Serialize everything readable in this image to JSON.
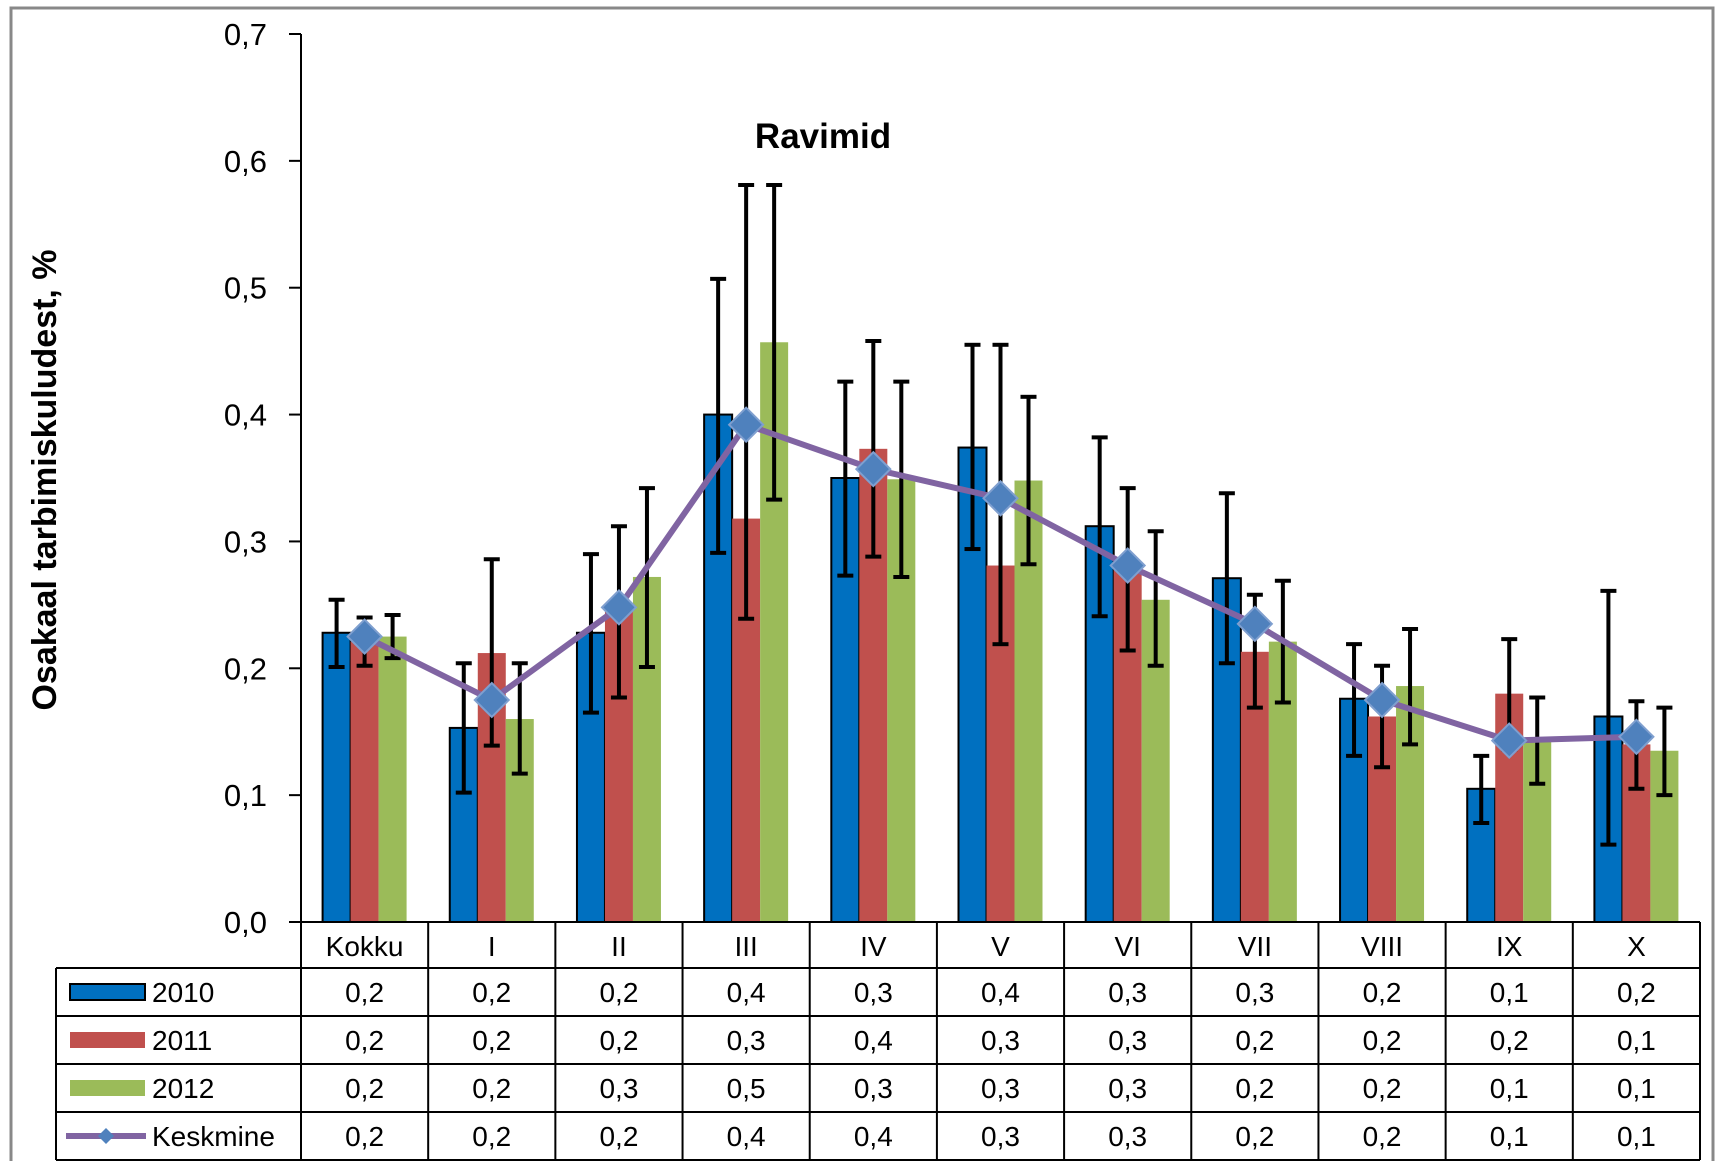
{
  "chart_data": {
    "type": "bar",
    "title": "Ravimid",
    "ylabel": "Osakaal tarbimiskuludest, %",
    "xlabel": "",
    "ylim": [
      0,
      0.7
    ],
    "yticks": [
      "0,0",
      "0,1",
      "0,2",
      "0,3",
      "0,4",
      "0,5",
      "0,6",
      "0,7"
    ],
    "ytick_values": [
      0,
      0.1,
      0.2,
      0.3,
      0.4,
      0.5,
      0.6,
      0.7
    ],
    "categories": [
      "Kokku",
      "I",
      "II",
      "III",
      "IV",
      "V",
      "VI",
      "VII",
      "VIII",
      "IX",
      "X"
    ],
    "series": [
      {
        "name": "2010",
        "color": "#0070C0",
        "values": [
          0.228,
          0.153,
          0.228,
          0.4,
          0.35,
          0.374,
          0.312,
          0.271,
          0.176,
          0.105,
          0.162
        ],
        "err_low": [
          0.201,
          0.102,
          0.165,
          0.291,
          0.273,
          0.294,
          0.241,
          0.204,
          0.131,
          0.078,
          0.061
        ],
        "err_high": [
          0.254,
          0.204,
          0.29,
          0.507,
          0.426,
          0.455,
          0.382,
          0.338,
          0.219,
          0.131,
          0.261
        ],
        "table": [
          "0,2",
          "0,2",
          "0,2",
          "0,4",
          "0,3",
          "0,4",
          "0,3",
          "0,3",
          "0,2",
          "0,1",
          "0,2"
        ]
      },
      {
        "name": "2011",
        "color": "#C0504D",
        "values": [
          0.221,
          0.212,
          0.245,
          0.318,
          0.373,
          0.281,
          0.278,
          0.213,
          0.162,
          0.18,
          0.14
        ],
        "err_low": [
          0.202,
          0.139,
          0.177,
          0.239,
          0.288,
          0.219,
          0.214,
          0.169,
          0.122,
          0.136,
          0.105
        ],
        "err_high": [
          0.24,
          0.286,
          0.312,
          0.581,
          0.458,
          0.455,
          0.342,
          0.258,
          0.202,
          0.223,
          0.174
        ],
        "table": [
          "0,2",
          "0,2",
          "0,2",
          "0,3",
          "0,4",
          "0,3",
          "0,3",
          "0,2",
          "0,2",
          "0,2",
          "0,1"
        ]
      },
      {
        "name": "2012",
        "color": "#9BBB59",
        "values": [
          0.225,
          0.16,
          0.272,
          0.457,
          0.349,
          0.348,
          0.254,
          0.221,
          0.186,
          0.143,
          0.135
        ],
        "err_low": [
          0.208,
          0.117,
          0.201,
          0.333,
          0.272,
          0.282,
          0.202,
          0.173,
          0.14,
          0.109,
          0.1
        ],
        "err_high": [
          0.242,
          0.204,
          0.342,
          0.581,
          0.426,
          0.414,
          0.308,
          0.269,
          0.231,
          0.177,
          0.169
        ],
        "table": [
          "0,2",
          "0,2",
          "0,3",
          "0,5",
          "0,3",
          "0,3",
          "0,3",
          "0,2",
          "0,2",
          "0,1",
          "0,1"
        ]
      },
      {
        "name": "Keskmine",
        "kind": "line",
        "color": "#8064A2",
        "marker_color": "#4F81BD",
        "values": [
          0.225,
          0.175,
          0.248,
          0.392,
          0.357,
          0.334,
          0.281,
          0.235,
          0.175,
          0.143,
          0.146
        ],
        "table": [
          "0,2",
          "0,2",
          "0,2",
          "0,4",
          "0,4",
          "0,3",
          "0,3",
          "0,2",
          "0,2",
          "0,1",
          "0,1"
        ]
      }
    ]
  }
}
